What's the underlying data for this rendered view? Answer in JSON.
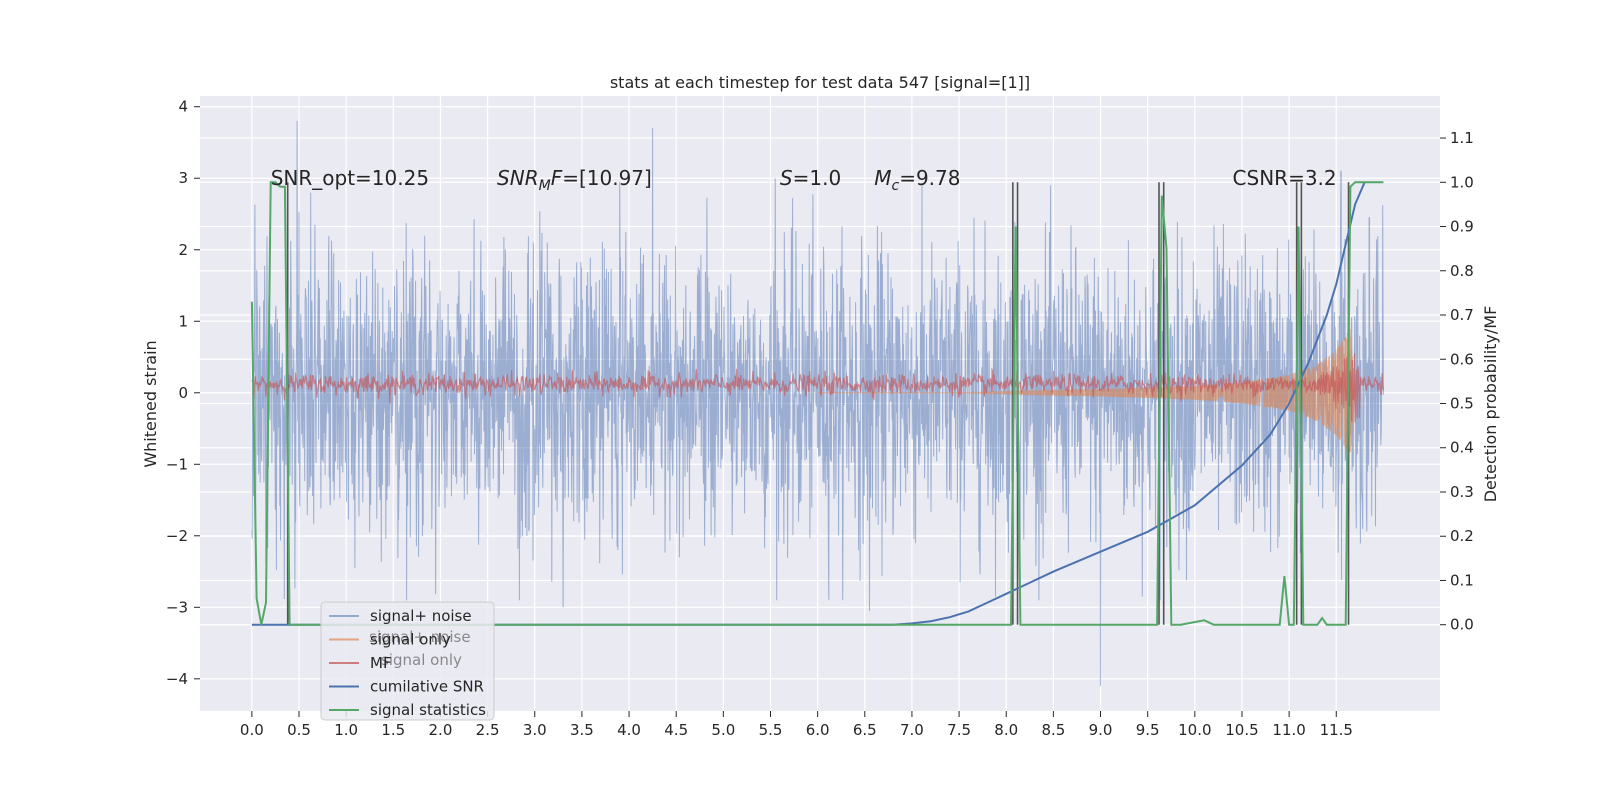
{
  "chart_data": {
    "type": "line",
    "title": "stats at each timestep for test data 547 [signal=[1]]",
    "xlabel": "",
    "ylabel": "Whitened strain",
    "ylabel_right": "Detection probability/MF",
    "xlim": [
      -0.55,
      12.6
    ],
    "ylim": [
      -4.45,
      4.15
    ],
    "ylim_right": [
      -0.195,
      1.195
    ],
    "x_ticks": [
      "0.0",
      "0.5",
      "1.0",
      "1.5",
      "2.0",
      "2.5",
      "3.0",
      "3.5",
      "4.0",
      "4.5",
      "5.0",
      "5.5",
      "6.0",
      "6.5",
      "7.0",
      "7.5",
      "8.0",
      "8.5",
      "9.0",
      "9.5",
      "10.0",
      "10.5",
      "11.0",
      "11.5"
    ],
    "y_ticks": [
      "4",
      "3",
      "2",
      "1",
      "0",
      "−1",
      "−2",
      "−3",
      "−4"
    ],
    "y_ticks_right": [
      "1.1",
      "1.0",
      "0.9",
      "0.8",
      "0.7",
      "0.6",
      "0.5",
      "0.4",
      "0.3",
      "0.2",
      "0.1",
      "0.0"
    ],
    "grid": true,
    "legend_position": "lower-left",
    "colors": {
      "signal_noise": "#4c72b0",
      "signal_only": "#dd8452",
      "mf": "#c44e52",
      "cumulative_snr": "#4c72b0",
      "signal_statistics": "#55a868",
      "vlines": "#3a3a3a",
      "panel_bg": "#eaeaf2"
    },
    "annotations": [
      {
        "id": "snr-opt",
        "text": "SNR_opt=10.25"
      },
      {
        "id": "snr-mf",
        "text": "SNR",
        "sub": "M",
        "rest": "F=[10.97]"
      },
      {
        "id": "s-value",
        "text": "S",
        "rest": "=1.0"
      },
      {
        "id": "mc-value",
        "text": "M",
        "sub": "c",
        "rest": "=9.78"
      },
      {
        "id": "csnr",
        "text": "CSNR=3.2"
      }
    ],
    "series": [
      {
        "name": "signal+ noise",
        "axis": "left",
        "description_values": "dense noise ~N(0,1) from x=0 to x=12, extremes: 3.8 at 0.48, 3.7 at 4.25, -4.1 at 9.0, -3.0 at 3.3, -3.0 at 6.55",
        "spikes": [
          [
            0.48,
            3.8
          ],
          [
            4.25,
            3.7
          ],
          [
            9.0,
            -4.1
          ],
          [
            3.3,
            -3.0
          ],
          [
            6.55,
            -3.05
          ],
          [
            3.9,
            2.95
          ],
          [
            5.55,
            3.0
          ],
          [
            11.55,
            3.1
          ],
          [
            11.85,
            2.45
          ]
        ]
      },
      {
        "name": "signal only",
        "axis": "left",
        "envelope": [
          [
            7.5,
            0.0
          ],
          [
            8.0,
            0.02
          ],
          [
            9.0,
            0.05
          ],
          [
            10.0,
            0.1
          ],
          [
            10.5,
            0.15
          ],
          [
            11.0,
            0.25
          ],
          [
            11.3,
            0.4
          ],
          [
            11.5,
            0.6
          ],
          [
            11.6,
            0.8
          ],
          [
            11.65,
            0.9
          ],
          [
            11.7,
            0.0
          ]
        ]
      },
      {
        "name": "MF",
        "axis": "left",
        "baseline": 0.12,
        "amplitude": 0.12
      },
      {
        "name": "cumilative SNR",
        "axis": "right",
        "x": [
          0.0,
          6.8,
          7.0,
          7.2,
          7.4,
          7.6,
          7.8,
          8.0,
          8.5,
          9.0,
          9.5,
          10.0,
          10.5,
          10.8,
          11.0,
          11.2,
          11.4,
          11.5,
          11.6,
          11.7,
          11.8
        ],
        "y": [
          0.0,
          0.0,
          0.003,
          0.008,
          0.017,
          0.03,
          0.05,
          0.07,
          0.12,
          0.165,
          0.21,
          0.27,
          0.36,
          0.43,
          0.5,
          0.59,
          0.7,
          0.77,
          0.86,
          0.95,
          1.0
        ]
      },
      {
        "name": "signal statistics",
        "axis": "right",
        "x": [
          0.0,
          0.05,
          0.1,
          0.15,
          0.2,
          0.25,
          0.3,
          0.35,
          0.4,
          0.45,
          8.05,
          8.1,
          8.15,
          8.2,
          9.6,
          9.65,
          9.7,
          9.75,
          9.8,
          9.85,
          10.1,
          10.2,
          10.9,
          10.95,
          11.0,
          11.05,
          11.1,
          11.15,
          11.2,
          11.3,
          11.35,
          11.4,
          11.6,
          11.65,
          11.7,
          11.8,
          12.0
        ],
        "y": [
          0.73,
          0.06,
          0.0,
          0.05,
          1.0,
          1.0,
          0.99,
          0.99,
          0.0,
          0.0,
          0.0,
          0.9,
          0.0,
          0.0,
          0.0,
          0.97,
          0.85,
          0.0,
          0.0,
          0.0,
          0.01,
          0.0,
          0.0,
          0.11,
          0.0,
          0.0,
          0.9,
          0.0,
          0.0,
          0.0,
          0.015,
          0.0,
          0.0,
          0.99,
          1.0,
          1.0,
          1.0
        ]
      }
    ],
    "vlines": [
      0.38,
      8.07,
      8.12,
      9.62,
      9.67,
      11.08,
      11.13,
      11.63
    ],
    "legend": [
      "signal+ noise",
      "signal only",
      "MF",
      "cumilative SNR",
      "signal statistics"
    ],
    "legend_ghost": [
      "signal+ noise",
      "signal only"
    ]
  }
}
